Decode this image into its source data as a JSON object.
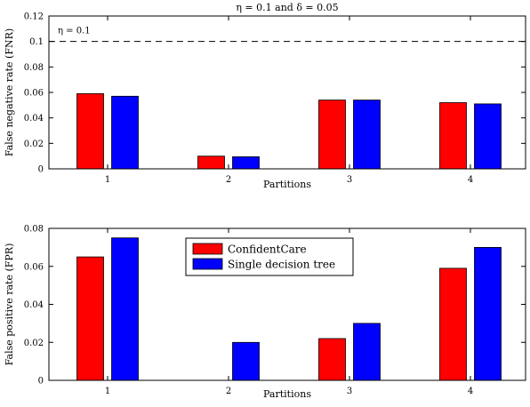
{
  "chart_data": [
    {
      "type": "bar",
      "title": "η = 0.1 and δ = 0.05",
      "xlabel": "Partitions",
      "ylabel": "False negative rate (FNR)",
      "categories": [
        "1",
        "2",
        "3",
        "4"
      ],
      "ylim": [
        0,
        0.12
      ],
      "yticks": [
        "0",
        "0.02",
        "0.04",
        "0.06",
        "0.08",
        "0.1",
        "0.12"
      ],
      "grid": false,
      "series": [
        {
          "color": "#ff0000",
          "values": [
            0.059,
            0.01,
            0.054,
            0.052
          ]
        },
        {
          "color": "#0000ff",
          "values": [
            0.057,
            0.0095,
            0.054,
            0.051
          ]
        }
      ],
      "reference_line": {
        "value": 0.1,
        "style": "dashed",
        "label": "η = 0.1"
      }
    },
    {
      "type": "bar",
      "title": "",
      "xlabel": "Partitions",
      "ylabel": "False positive rate (FPR)",
      "categories": [
        "1",
        "2",
        "3",
        "4"
      ],
      "ylim": [
        0,
        0.08
      ],
      "yticks": [
        "0",
        "0.02",
        "0.04",
        "0.06",
        "0.08"
      ],
      "grid": false,
      "legend_position": "top-center",
      "series": [
        {
          "name": "ConfidentCare",
          "color": "#ff0000",
          "values": [
            0.065,
            0,
            0.022,
            0.059
          ]
        },
        {
          "name": "Single decision tree",
          "color": "#0000ff",
          "values": [
            0.075,
            0.02,
            0.03,
            0.07
          ]
        }
      ]
    }
  ]
}
